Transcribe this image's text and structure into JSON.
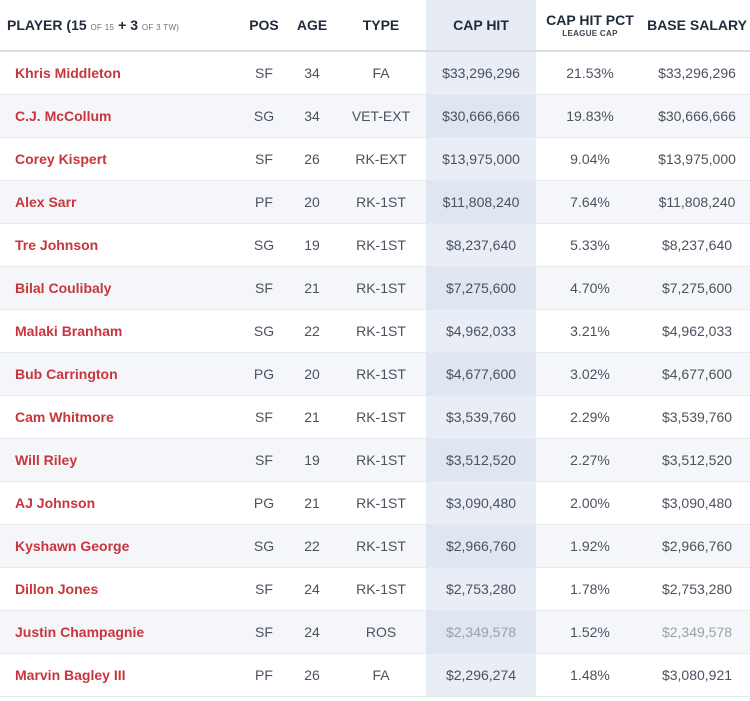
{
  "header": {
    "player_label": "PLAYER",
    "count_open": "(15",
    "count_of": "OF 15",
    "count_plus": "+ 3",
    "count_tw": "OF 3 TW)",
    "pos": "POS",
    "age": "AGE",
    "type": "TYPE",
    "cap_hit": "CAP HIT",
    "cap_hit_pct": "CAP HIT PCT",
    "cap_hit_pct_sub": "LEAGUE CAP",
    "base_salary": "BASE SALARY"
  },
  "rows": [
    {
      "player": "Khris Middleton",
      "pos": "SF",
      "age": "34",
      "type": "FA",
      "cap_hit": "$33,296,296",
      "pct": "21.53%",
      "base": "$33,296,296"
    },
    {
      "player": "C.J. McCollum",
      "pos": "SG",
      "age": "34",
      "type": "VET-EXT",
      "cap_hit": "$30,666,666",
      "pct": "19.83%",
      "base": "$30,666,666"
    },
    {
      "player": "Corey Kispert",
      "pos": "SF",
      "age": "26",
      "type": "RK-EXT",
      "cap_hit": "$13,975,000",
      "pct": "9.04%",
      "base": "$13,975,000"
    },
    {
      "player": "Alex Sarr",
      "pos": "PF",
      "age": "20",
      "type": "RK-1ST",
      "cap_hit": "$11,808,240",
      "pct": "7.64%",
      "base": "$11,808,240"
    },
    {
      "player": "Tre Johnson",
      "pos": "SG",
      "age": "19",
      "type": "RK-1ST",
      "cap_hit": "$8,237,640",
      "pct": "5.33%",
      "base": "$8,237,640"
    },
    {
      "player": "Bilal Coulibaly",
      "pos": "SF",
      "age": "21",
      "type": "RK-1ST",
      "cap_hit": "$7,275,600",
      "pct": "4.70%",
      "base": "$7,275,600"
    },
    {
      "player": "Malaki Branham",
      "pos": "SG",
      "age": "22",
      "type": "RK-1ST",
      "cap_hit": "$4,962,033",
      "pct": "3.21%",
      "base": "$4,962,033"
    },
    {
      "player": "Bub Carrington",
      "pos": "PG",
      "age": "20",
      "type": "RK-1ST",
      "cap_hit": "$4,677,600",
      "pct": "3.02%",
      "base": "$4,677,600"
    },
    {
      "player": "Cam Whitmore",
      "pos": "SF",
      "age": "21",
      "type": "RK-1ST",
      "cap_hit": "$3,539,760",
      "pct": "2.29%",
      "base": "$3,539,760"
    },
    {
      "player": "Will Riley",
      "pos": "SF",
      "age": "19",
      "type": "RK-1ST",
      "cap_hit": "$3,512,520",
      "pct": "2.27%",
      "base": "$3,512,520"
    },
    {
      "player": "AJ Johnson",
      "pos": "PG",
      "age": "21",
      "type": "RK-1ST",
      "cap_hit": "$3,090,480",
      "pct": "2.00%",
      "base": "$3,090,480"
    },
    {
      "player": "Kyshawn George",
      "pos": "SG",
      "age": "22",
      "type": "RK-1ST",
      "cap_hit": "$2,966,760",
      "pct": "1.92%",
      "base": "$2,966,760"
    },
    {
      "player": "Dillon Jones",
      "pos": "SF",
      "age": "24",
      "type": "RK-1ST",
      "cap_hit": "$2,753,280",
      "pct": "1.78%",
      "base": "$2,753,280"
    },
    {
      "player": "Justin Champagnie",
      "pos": "SF",
      "age": "24",
      "type": "ROS",
      "cap_hit": "$2,349,578",
      "pct": "1.52%",
      "base": "$2,349,578",
      "muted": true
    },
    {
      "player": "Marvin Bagley III",
      "pos": "PF",
      "age": "26",
      "type": "FA",
      "cap_hit": "$2,296,274",
      "pct": "1.48%",
      "base": "$3,080,921"
    }
  ]
}
